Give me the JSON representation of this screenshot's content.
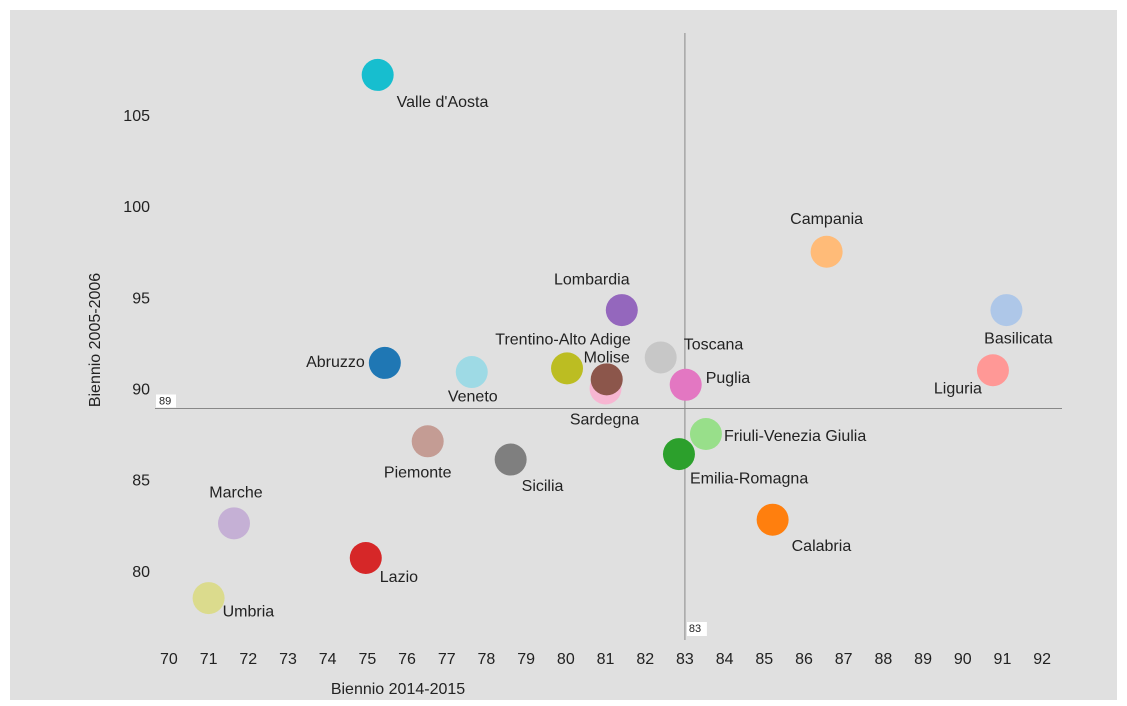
{
  "chart_data": {
    "type": "scatter",
    "xlabel": "Biennio 2014-2015",
    "ylabel": "Biennio 2005-2006",
    "xlim": [
      69.65,
      92.5
    ],
    "ylim": [
      76.3,
      109.6
    ],
    "xticks": [
      70,
      71,
      72,
      73,
      74,
      75,
      76,
      77,
      78,
      79,
      80,
      81,
      82,
      83,
      84,
      85,
      86,
      87,
      88,
      89,
      90,
      91,
      92
    ],
    "yticks": [
      80,
      85,
      90,
      95,
      100,
      105
    ],
    "grid": false,
    "reference_lines": {
      "x": 83,
      "y": 89
    },
    "points": [
      {
        "name": "Valle d'Aosta",
        "x": 75.26,
        "y": 107.3,
        "color": "#17becf"
      },
      {
        "name": "Campania",
        "x": 86.57,
        "y": 97.6,
        "color": "#ffbb78"
      },
      {
        "name": "Lombardia",
        "x": 81.41,
        "y": 94.4,
        "color": "#9467bd"
      },
      {
        "name": "Basilicata",
        "x": 91.1,
        "y": 94.4,
        "color": "#aec7e8"
      },
      {
        "name": "Toscana",
        "x": 82.39,
        "y": 91.8,
        "color": "#c7c7c7"
      },
      {
        "name": "Abruzzo",
        "x": 75.44,
        "y": 91.5,
        "color": "#1f77b4"
      },
      {
        "name": "Trentino-Alto Adige",
        "x": 80.03,
        "y": 91.2,
        "color": "#bcbd22"
      },
      {
        "name": "Veneto",
        "x": 77.63,
        "y": 91.0,
        "color": "#9edae5"
      },
      {
        "name": "Liguria",
        "x": 90.76,
        "y": 91.1,
        "color": "#ff9896"
      },
      {
        "name": "Sardegna",
        "x": 81.0,
        "y": 90.1,
        "color": "#f7b6d2"
      },
      {
        "name": "Molise",
        "x": 81.03,
        "y": 90.6,
        "color": "#8c564b"
      },
      {
        "name": "Puglia",
        "x": 83.02,
        "y": 90.3,
        "color": "#e377c2"
      },
      {
        "name": "Friuli-Venezia Giulia",
        "x": 83.53,
        "y": 87.6,
        "color": "#98df8a"
      },
      {
        "name": "Piemonte",
        "x": 76.52,
        "y": 87.2,
        "color": "#c49c94"
      },
      {
        "name": "Emilia-Romagna",
        "x": 82.85,
        "y": 86.5,
        "color": "#2ca02c"
      },
      {
        "name": "Sicilia",
        "x": 78.61,
        "y": 86.2,
        "color": "#7f7f7f"
      },
      {
        "name": "Marche",
        "x": 71.64,
        "y": 82.7,
        "color": "#c5b0d5"
      },
      {
        "name": "Calabria",
        "x": 85.21,
        "y": 82.9,
        "color": "#ff7f0e"
      },
      {
        "name": "Lazio",
        "x": 74.96,
        "y": 80.8,
        "color": "#d62728"
      },
      {
        "name": "Umbria",
        "x": 71.0,
        "y": 78.6,
        "color": "#dbdb8d"
      }
    ]
  }
}
